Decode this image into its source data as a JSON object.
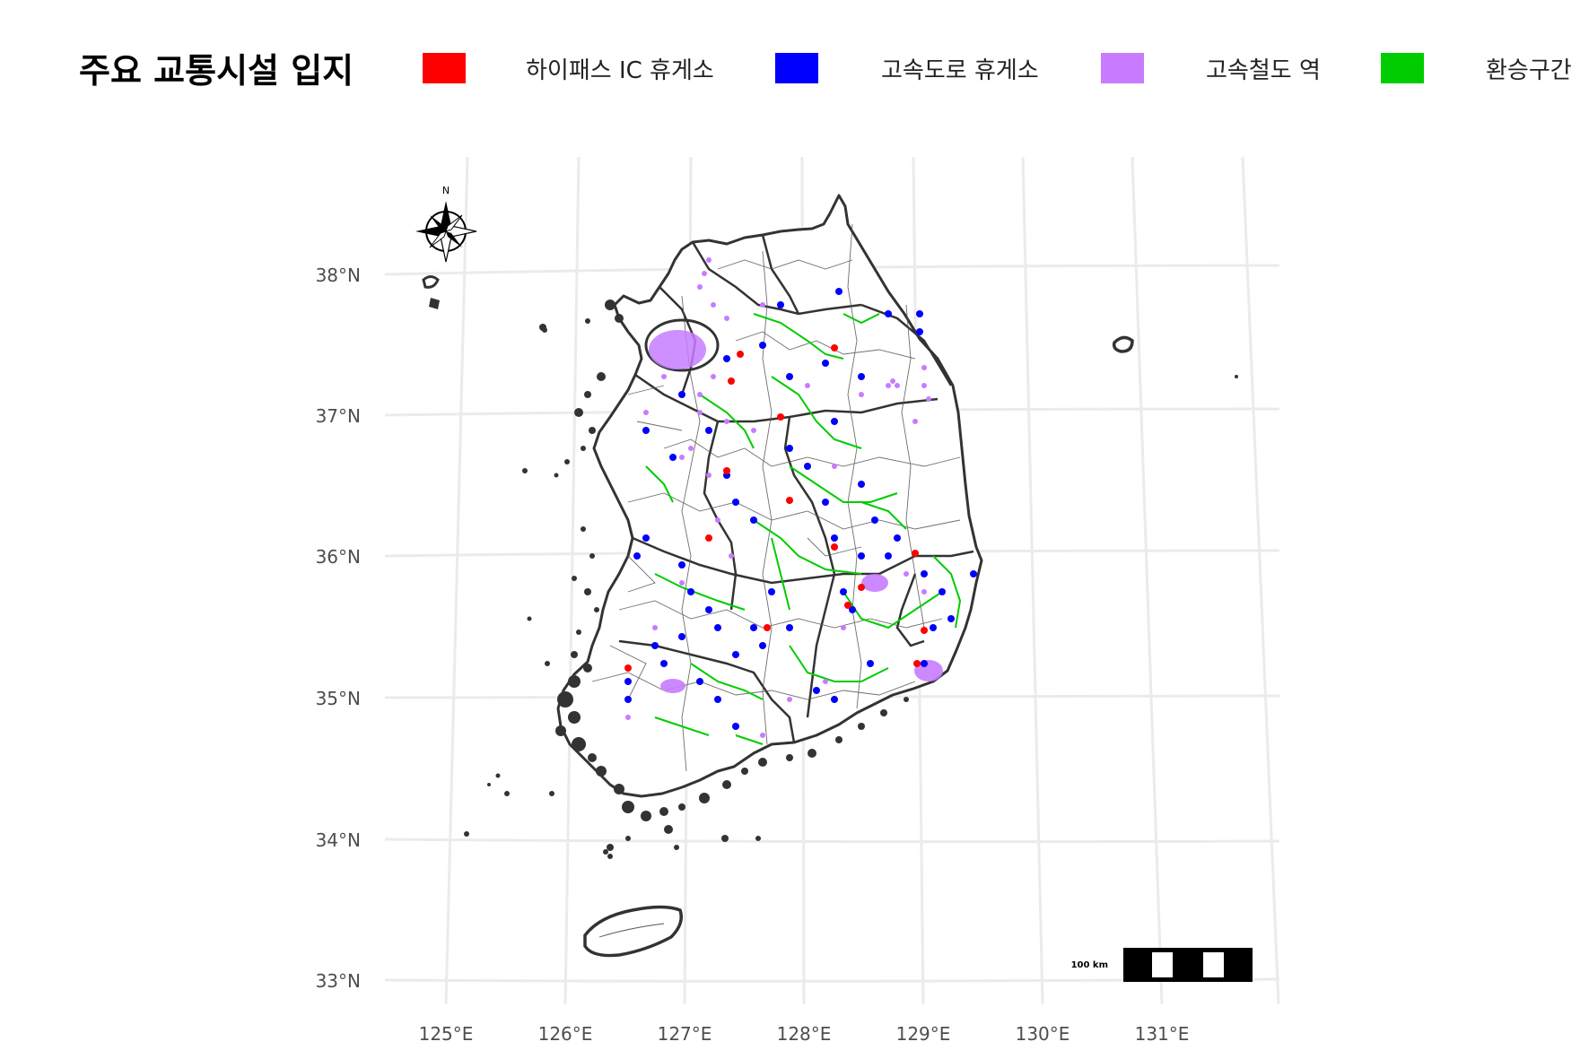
{
  "legend": {
    "title": "주요 교통시설 입지",
    "items": [
      {
        "label": "하이패스 IC 휴게소",
        "color": "#ff0000"
      },
      {
        "label": "고속도로 휴게소",
        "color": "#0000ff"
      },
      {
        "label": "고속철도 역",
        "color": "#c77cff"
      },
      {
        "label": "환승구간",
        "color": "#00cc00"
      }
    ]
  },
  "map": {
    "region": "South Korea",
    "lat_ticks": [
      "38°N",
      "37°N",
      "36°N",
      "35°N",
      "34°N",
      "33°N"
    ],
    "lon_ticks": [
      "125°E",
      "126°E",
      "127°E",
      "128°E",
      "129°E",
      "130°E",
      "131°E"
    ],
    "north_arrow_label": "N",
    "scale_bar_label": "100 km",
    "grid_color": "#ebebeb",
    "boundary_color": "#333333"
  }
}
